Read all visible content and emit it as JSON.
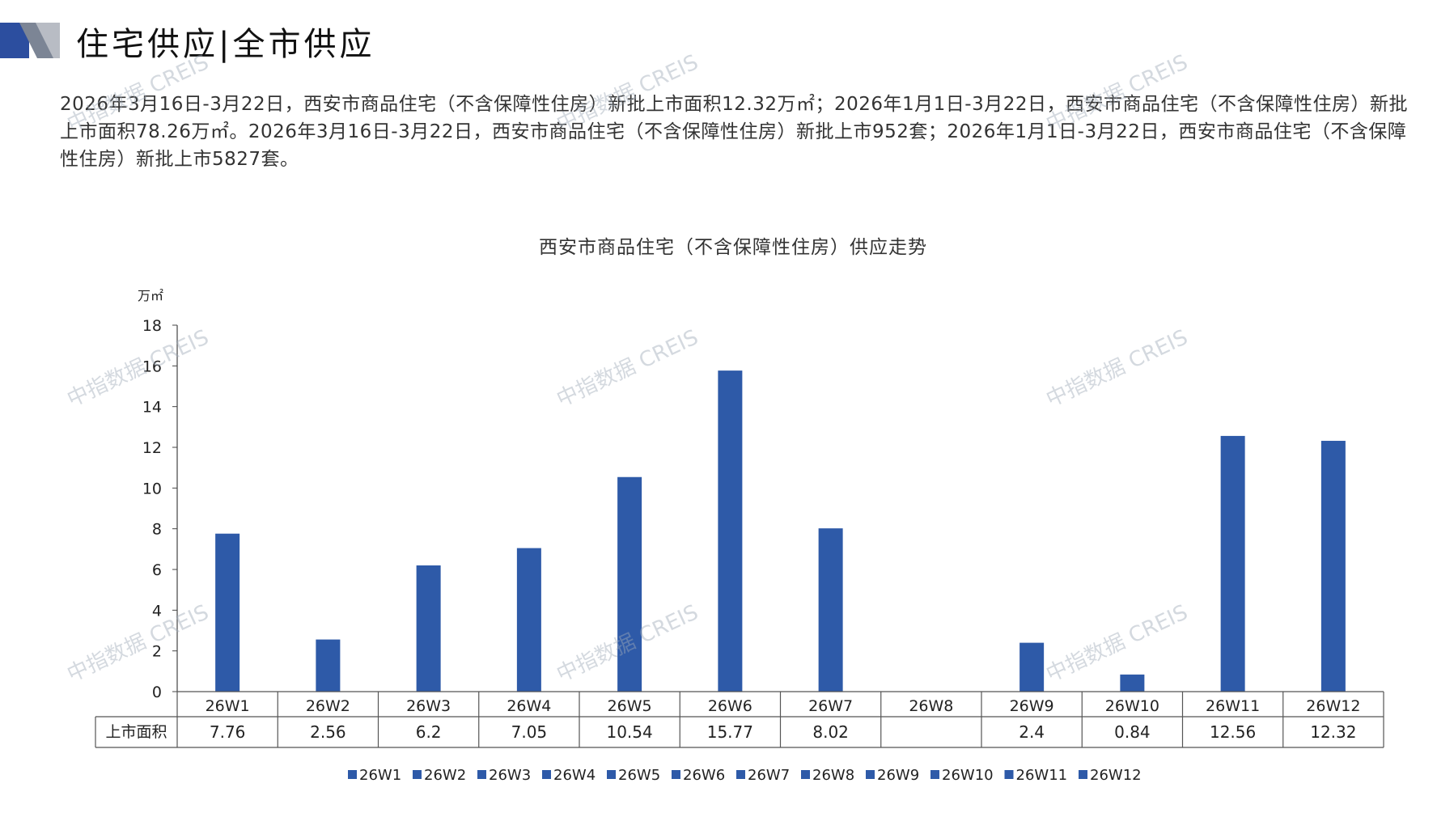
{
  "header": {
    "title": "住宅供应|全市供应"
  },
  "summary": "2026年3月16日-3月22日，西安市商品住宅（不含保障性住房）新批上市面积12.32万㎡；2026年1月1日-3月22日，西安市商品住宅（不含保障性住房）新批上市面积78.26万㎡。2026年3月16日-3月22日，西安市商品住宅（不含保障性住房）新批上市952套；2026年1月1日-3月22日，西安市商品住宅（不含保障性住房）新批上市5827套。",
  "watermark": "中指数据 CREIS",
  "colors": {
    "bar": "#2E5AA8",
    "header_blue": "#2C4E9F",
    "header_gray": "#B8BCC4"
  },
  "chart_data": {
    "type": "bar",
    "title": "西安市商品住宅（不含保障性住房）供应走势",
    "ylabel": "万㎡",
    "ylim": [
      0,
      18
    ],
    "yticks": [
      0,
      2,
      4,
      6,
      8,
      10,
      12,
      14,
      16,
      18
    ],
    "categories": [
      "26W1",
      "26W2",
      "26W3",
      "26W4",
      "26W5",
      "26W6",
      "26W7",
      "26W8",
      "26W9",
      "26W10",
      "26W11",
      "26W12"
    ],
    "series": [
      {
        "name": "上市面积",
        "values": [
          7.76,
          2.56,
          6.2,
          7.05,
          10.54,
          15.77,
          8.02,
          null,
          2.4,
          0.84,
          12.56,
          12.32
        ],
        "labels": [
          "7.76",
          "2.56",
          "6.2",
          "7.05",
          "10.54",
          "15.77",
          "8.02",
          "",
          "2.4",
          "0.84",
          "12.56",
          "12.32"
        ]
      }
    ],
    "legend": [
      "26W1",
      "26W2",
      "26W3",
      "26W4",
      "26W5",
      "26W6",
      "26W7",
      "26W8",
      "26W9",
      "26W10",
      "26W11",
      "26W12"
    ],
    "legend_position": "bottom",
    "grid": false,
    "data_table": true
  }
}
